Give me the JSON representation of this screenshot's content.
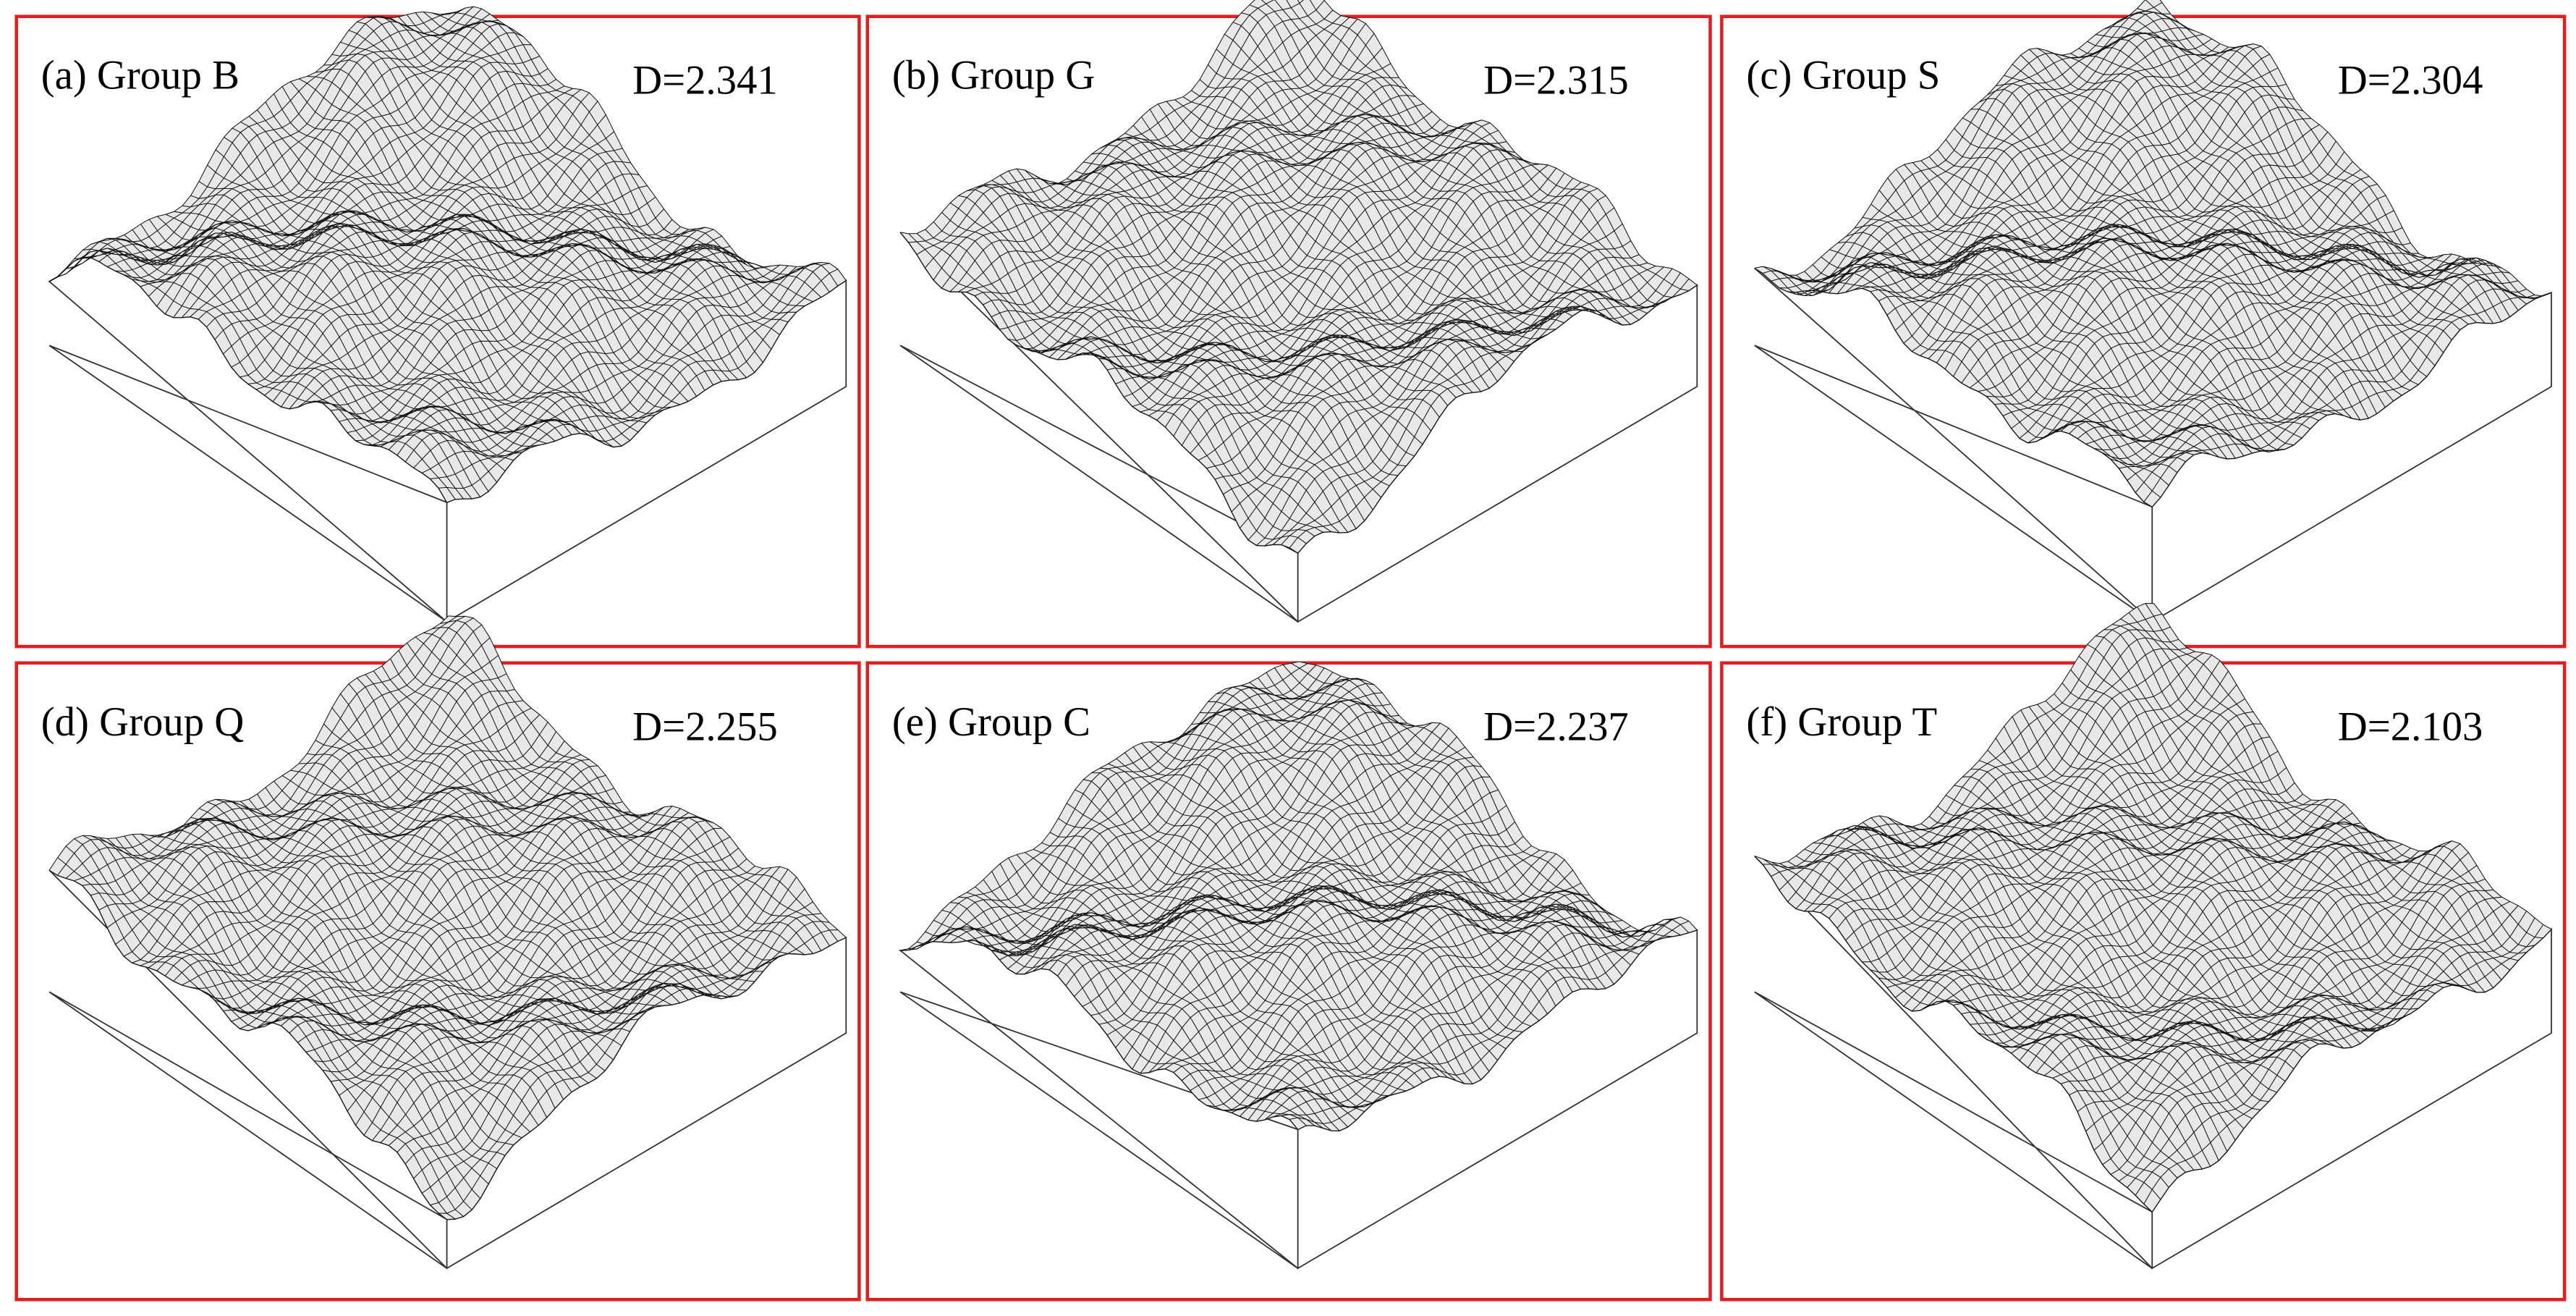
{
  "panels": [
    {
      "label": "(a) Group B",
      "d": "D=2.341"
    },
    {
      "label": "(b) Group G",
      "d": "D=2.315"
    },
    {
      "label": "(c) Group S",
      "d": "D=2.304"
    },
    {
      "label": "(d) Group Q",
      "d": "D=2.255"
    },
    {
      "label": "(e) Group C",
      "d": "D=2.237"
    },
    {
      "label": "(f) Group T",
      "d": "D=2.103"
    }
  ]
}
